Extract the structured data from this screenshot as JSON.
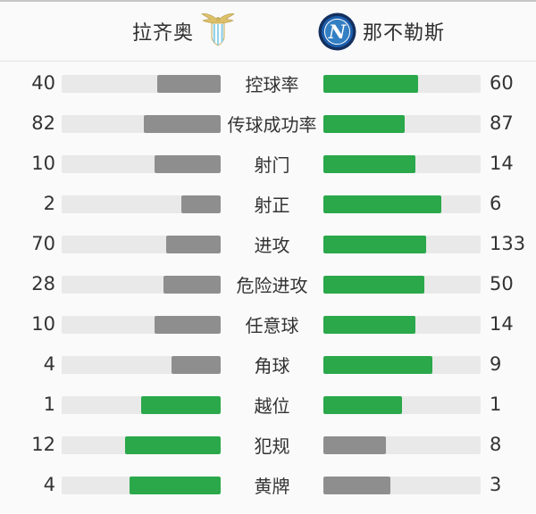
{
  "header": {
    "home_team": "拉齐奥",
    "away_team": "那不勒斯",
    "home_badge": "lazio-crest",
    "away_badge": "napoli-crest"
  },
  "colors": {
    "leading_bar": "#2aa84a",
    "trailing_bar": "#8e8e8e",
    "bar_track": "#e9e9e9",
    "divider": "#e3e3e3",
    "background": "#fafafa",
    "text": "#333333"
  },
  "chart_data": {
    "type": "bar",
    "orientation": "horizontal-mirrored",
    "categories": [
      "控球率",
      "传球成功率",
      "射门",
      "射正",
      "进攻",
      "危险进攻",
      "任意球",
      "角球",
      "越位",
      "犯规",
      "黄牌"
    ],
    "series": [
      {
        "name": "拉齐奥",
        "values": [
          40,
          82,
          10,
          2,
          70,
          28,
          10,
          4,
          1,
          12,
          4
        ]
      },
      {
        "name": "那不勒斯",
        "values": [
          60,
          87,
          14,
          6,
          133,
          50,
          14,
          9,
          1,
          8,
          3
        ]
      }
    ],
    "value_scaling": "bar width = value / (home + away) of track width",
    "highlight_rule": "side with higher value is green, lower is gray, tie both green",
    "legend_position": "header",
    "grid": false
  }
}
